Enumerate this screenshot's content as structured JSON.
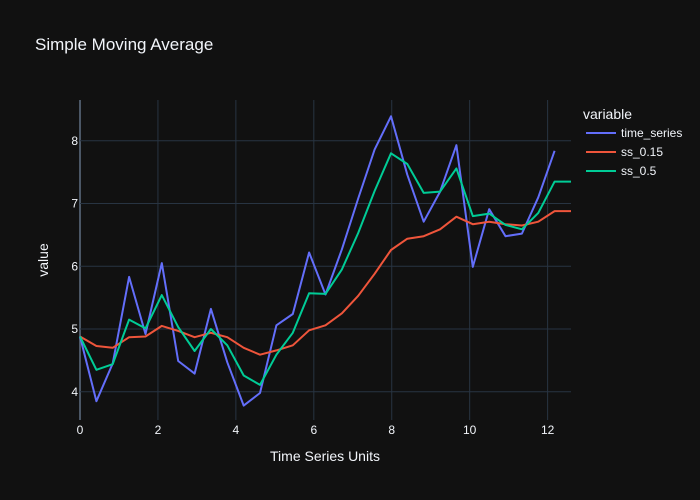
{
  "chart_data": {
    "type": "line",
    "title": "Simple Moving Average",
    "xlabel": "Time Series Units",
    "ylabel": "value",
    "legend_title": "variable",
    "legend_position": "top-right (outside plot)",
    "grid": true,
    "xlim": [
      0,
      12.6
    ],
    "ylim": [
      3.55,
      8.65
    ],
    "x_ticks": [
      0,
      2,
      4,
      6,
      8,
      10,
      12
    ],
    "y_ticks": [
      4,
      5,
      6,
      7,
      8
    ],
    "x": [
      0,
      0.42,
      0.84,
      1.26,
      1.68,
      2.1,
      2.52,
      2.94,
      3.36,
      3.78,
      4.2,
      4.62,
      5.04,
      5.46,
      5.88,
      6.3,
      6.72,
      7.14,
      7.56,
      7.98,
      8.4,
      8.82,
      9.24,
      9.66,
      10.08,
      10.5,
      10.92,
      11.34,
      11.76,
      12.18,
      12.6
    ],
    "series": [
      {
        "name": "time_series",
        "color": "#636efa",
        "values": [
          4.88,
          3.85,
          4.45,
          5.83,
          4.92,
          6.05,
          4.49,
          4.29,
          5.32,
          4.47,
          3.78,
          3.98,
          5.06,
          5.24,
          6.22,
          5.55,
          6.27,
          7.08,
          7.86,
          8.39,
          7.46,
          6.71,
          7.19,
          7.93,
          5.99,
          6.91,
          6.48,
          6.52,
          7.1,
          7.84,
          null
        ]
      },
      {
        "name": "ss_0.15",
        "color": "#ef553b",
        "values": [
          4.88,
          4.73,
          4.7,
          4.87,
          4.88,
          5.05,
          4.97,
          4.87,
          4.94,
          4.87,
          4.7,
          4.59,
          4.66,
          4.74,
          4.98,
          5.06,
          5.25,
          5.53,
          5.88,
          6.26,
          6.44,
          6.48,
          6.59,
          6.79,
          6.67,
          6.71,
          6.67,
          6.65,
          6.71,
          6.88,
          6.88
        ]
      },
      {
        "name": "ss_0.5",
        "color": "#00cc96",
        "values": [
          4.88,
          4.35,
          4.44,
          5.15,
          5.01,
          5.54,
          5.03,
          4.65,
          5.0,
          4.74,
          4.26,
          4.11,
          4.59,
          4.94,
          5.57,
          5.56,
          5.95,
          6.53,
          7.2,
          7.8,
          7.63,
          7.17,
          7.19,
          7.56,
          6.8,
          6.84,
          6.66,
          6.59,
          6.85,
          7.35,
          7.35
        ]
      }
    ]
  },
  "colors": {
    "background": "#111111",
    "grid": "#283442",
    "zeroline": "#4b5766",
    "text": "#f2f5fa"
  }
}
